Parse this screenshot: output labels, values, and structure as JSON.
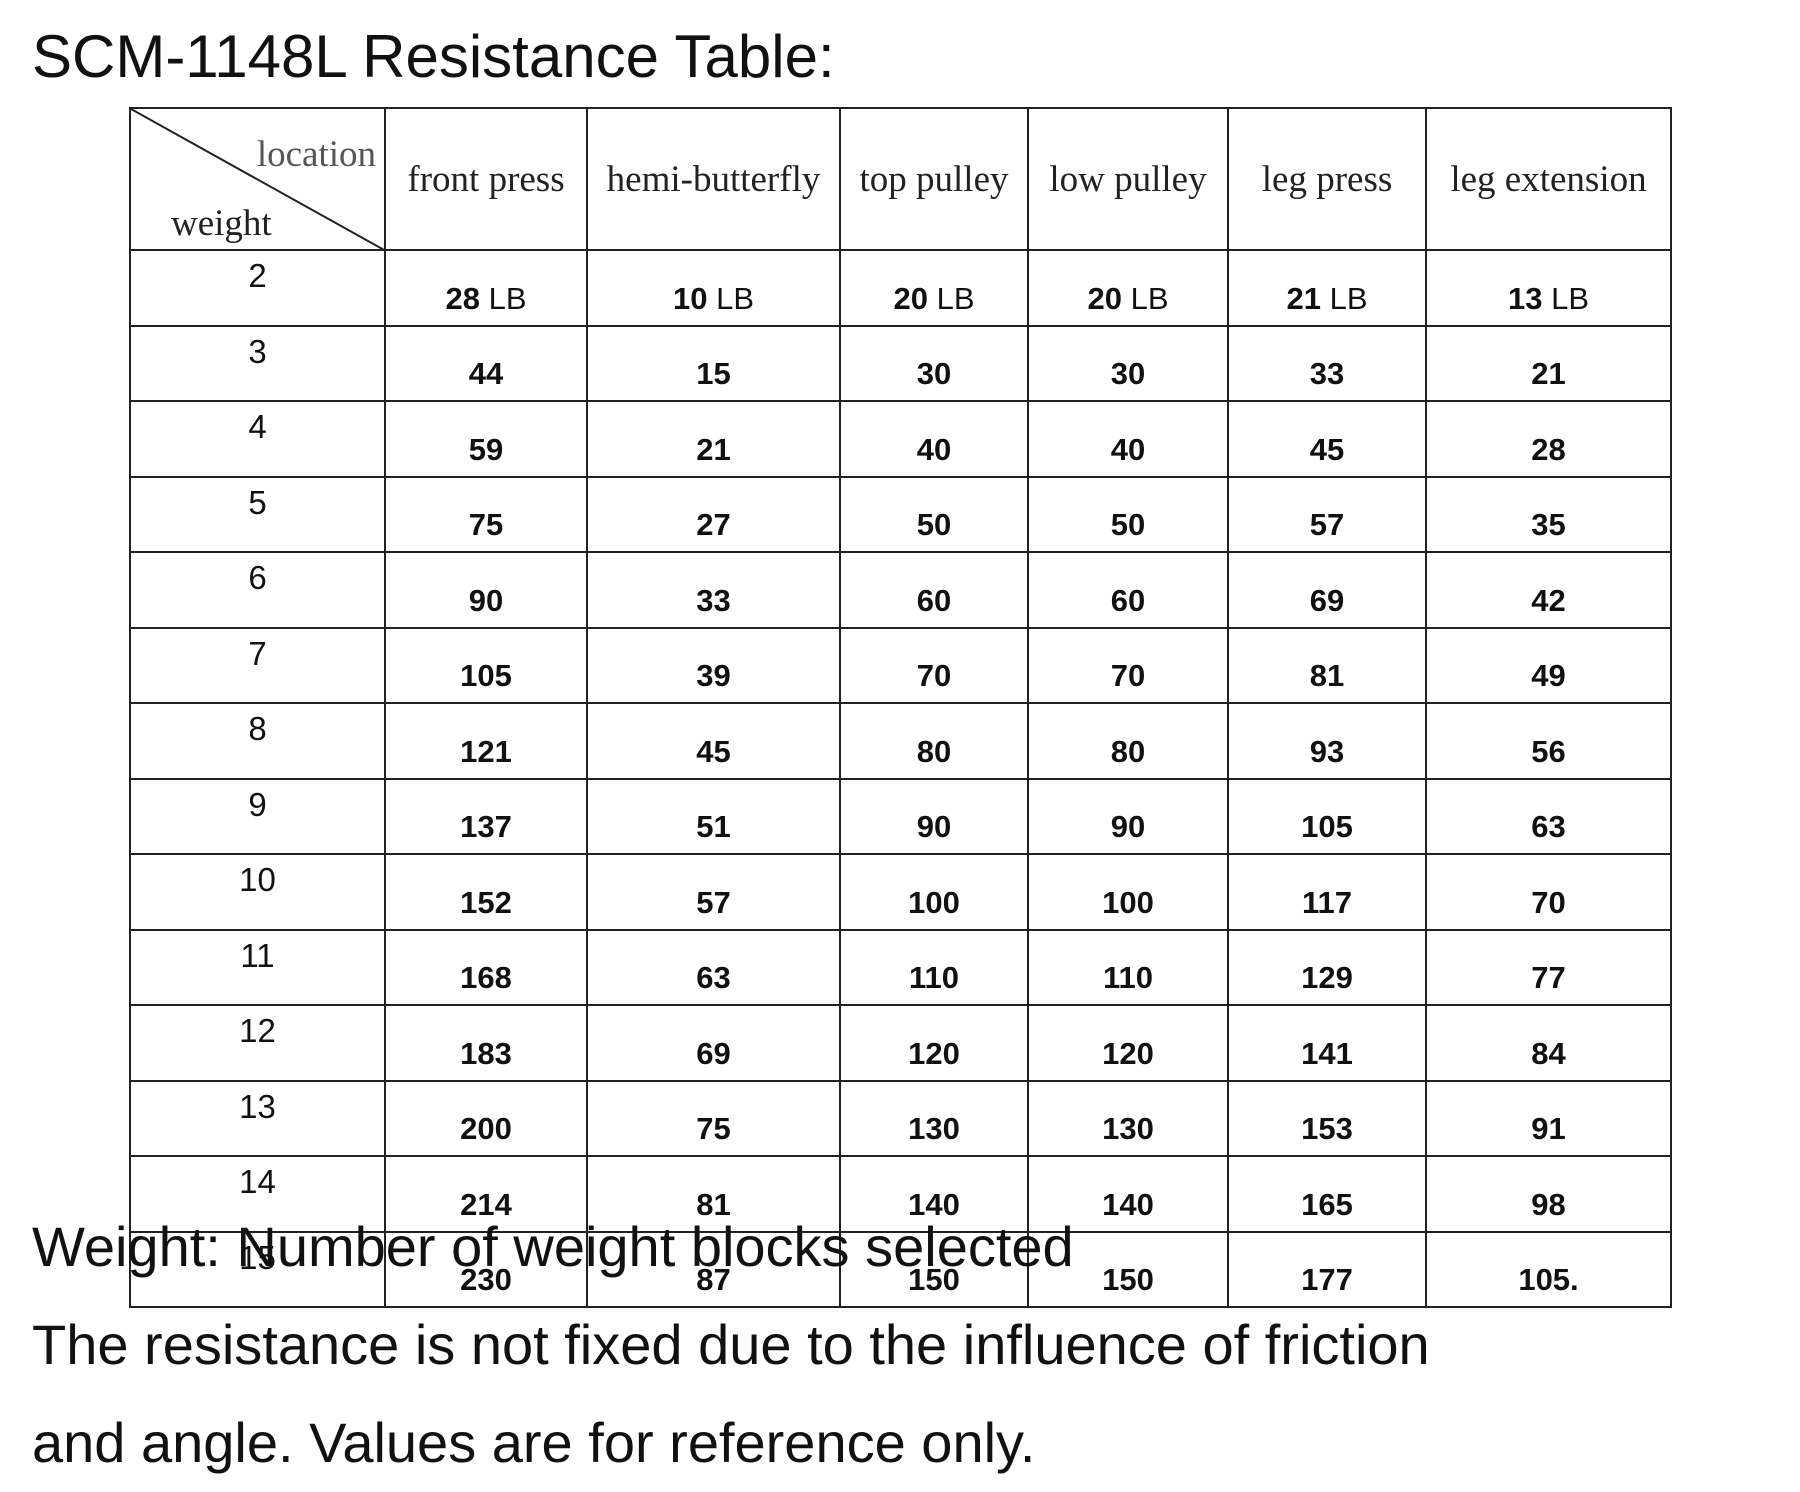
{
  "title": "SCM-1148L Resistance Table:",
  "table": {
    "corner": {
      "top": "location",
      "bottom": "weight"
    },
    "columns": [
      "front press",
      "hemi-butterfly",
      "top pulley",
      "low pulley",
      "leg press",
      "leg extension"
    ],
    "rows": [
      [
        "2",
        {
          "value": "28",
          "unit": "LB"
        },
        {
          "value": "10",
          "unit": "LB"
        },
        {
          "value": "20",
          "unit": "LB"
        },
        {
          "value": "20",
          "unit": "LB"
        },
        {
          "value": "21",
          "unit": "LB"
        },
        {
          "value": "13",
          "unit": "LB"
        }
      ],
      [
        "3",
        "44",
        "15",
        "30",
        "30",
        "33",
        "21"
      ],
      [
        "4",
        "59",
        "21",
        "40",
        "40",
        "45",
        "28"
      ],
      [
        "5",
        "75",
        "27",
        "50",
        "50",
        "57",
        "35"
      ],
      [
        "6",
        "90",
        "33",
        "60",
        "60",
        "69",
        "42"
      ],
      [
        "7",
        "105",
        "39",
        "70",
        "70",
        "81",
        "49"
      ],
      [
        "8",
        "121",
        "45",
        "80",
        "80",
        "93",
        "56"
      ],
      [
        "9",
        "137",
        "51",
        "90",
        "90",
        "105",
        "63"
      ],
      [
        "10",
        "152",
        "57",
        "100",
        "100",
        "117",
        "70"
      ],
      [
        "11",
        "168",
        "63",
        "110",
        "110",
        "129",
        "77"
      ],
      [
        "12",
        "183",
        "69",
        "120",
        "120",
        "141",
        "84"
      ],
      [
        "13",
        "200",
        "75",
        "130",
        "130",
        "153",
        "91"
      ],
      [
        "14",
        "214",
        "81",
        "140",
        "140",
        "165",
        "98"
      ],
      [
        "15",
        "230",
        "87",
        "150",
        "150",
        "177",
        "105."
      ]
    ]
  },
  "notes": [
    "Weight: Number of weight blocks selected",
    "The resistance is not fixed due to the influence of friction",
    "and angle. Values are for reference only."
  ]
}
